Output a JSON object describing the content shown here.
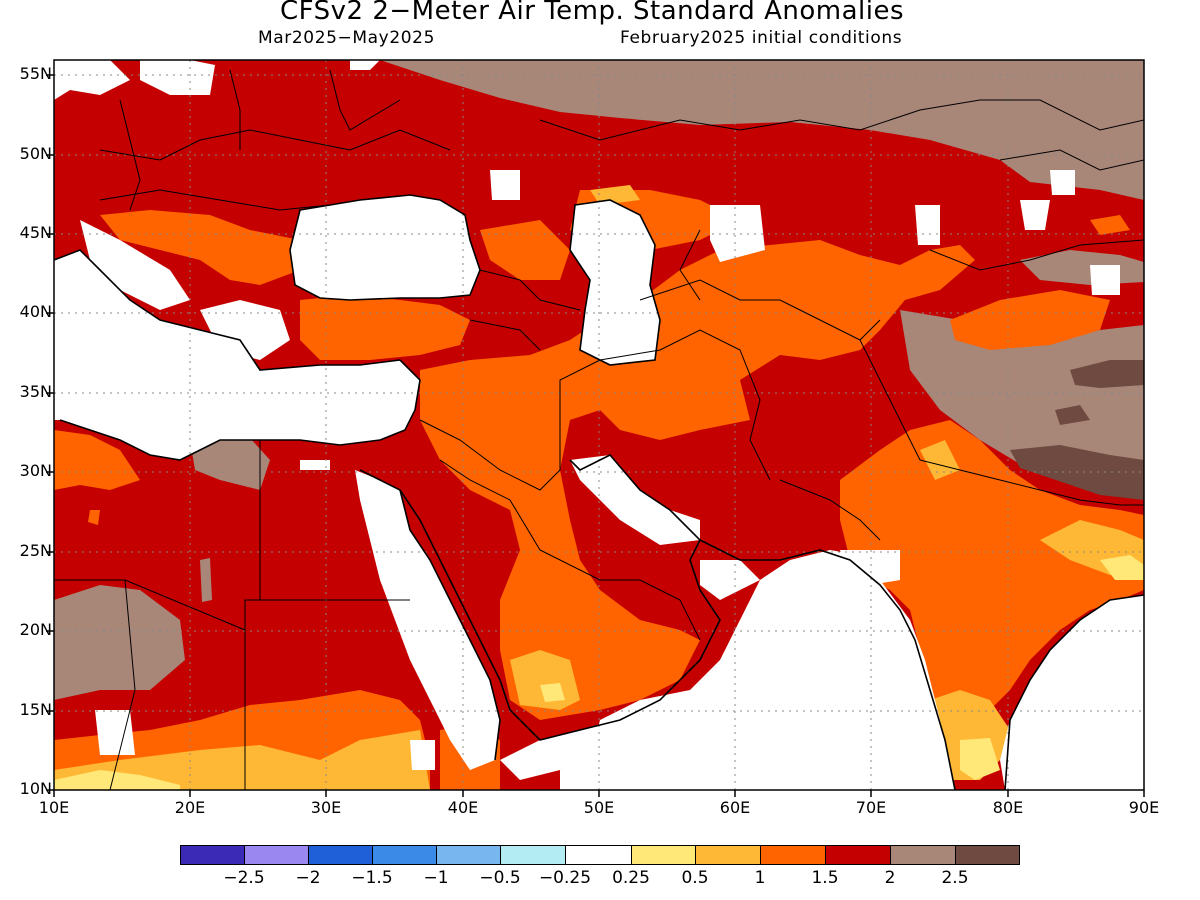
{
  "title": "CFSv2 2−Meter Air Temp. Standard Anomalies",
  "subtitle_left": "Mar2025−May2025",
  "subtitle_right": "February2025 initial conditions",
  "map": {
    "lon_range": [
      10,
      90
    ],
    "lat_range": [
      10,
      56
    ],
    "lat_ticks": [
      "55N",
      "50N",
      "45N",
      "40N",
      "35N",
      "30N",
      "25N",
      "20N",
      "15N",
      "10N"
    ],
    "lon_ticks": [
      "10E",
      "20E",
      "30E",
      "40E",
      "50E",
      "60E",
      "70E",
      "80E",
      "90E"
    ],
    "grid_lines": "dotted"
  },
  "legend": {
    "colors": [
      "#3a2ab5",
      "#9a88f0",
      "#1f5fd8",
      "#3c8ae8",
      "#78b6f0",
      "#b4ecf4",
      "#ffffff",
      "#ffe878",
      "#ffb835",
      "#ff6400",
      "#c40000",
      "#a88678",
      "#6e4a40"
    ],
    "labels": [
      "−2.5",
      "−2",
      "−1.5",
      "−1",
      "−0.5",
      "−0.25",
      "0.25",
      "0.5",
      "1",
      "1.5",
      "2",
      "2.5"
    ]
  },
  "colors": {
    "red": "#c40000",
    "orange": "#ff6400",
    "light_orange": "#ffb835",
    "yellow": "#ffe878",
    "brown": "#a88678",
    "dark_brown": "#6e4a40",
    "white": "#ffffff"
  }
}
